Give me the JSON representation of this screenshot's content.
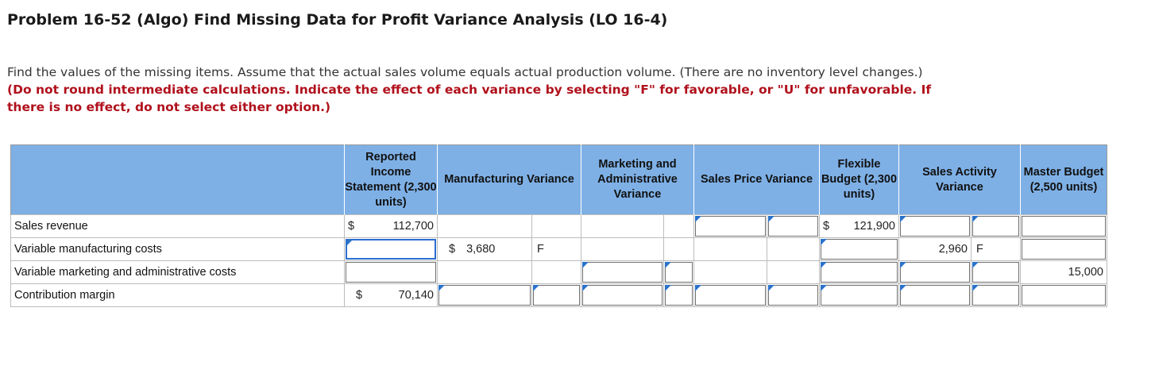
{
  "title": "Problem 16-52 (Algo) Find Missing Data for Profit Variance Analysis (LO 16-4)",
  "instructions": {
    "normal": "Find the values of the missing items. Assume that the actual sales volume equals actual production volume. (There are no inventory level changes.) ",
    "bold_red": "(Do not round intermediate calculations. Indicate the effect of each variance by selecting \"F\" for favorable, or \"U\" for unfavorable. If there is no effect, do not select either option.)"
  },
  "table": {
    "headers": {
      "reported": "Reported Income Statement (2,300 units)",
      "manufacturing": "Manufacturing Variance",
      "marketing": "Marketing and Administrative Variance",
      "sales_price": "Sales Price Variance",
      "flexible": "Flexible Budget (2,300 units)",
      "sales_activity": "Sales Activity Variance",
      "master": "Master Budget (2,500 units)"
    },
    "rows": {
      "sales_revenue": {
        "label": "Sales revenue",
        "reported_dollar": "$",
        "reported_amount": "112,700",
        "flexible_dollar": "$",
        "flexible_amount": "121,900"
      },
      "var_mfg": {
        "label": "Variable manufacturing costs",
        "mfg_dollar": "$",
        "mfg_amount": "3,680",
        "mfg_effect": "F",
        "activity_amount": "2,960",
        "activity_effect": "F"
      },
      "var_mkt": {
        "label": "Variable marketing and administrative costs",
        "master_amount": "15,000"
      },
      "contribution": {
        "label": "Contribution margin",
        "reported_dollar": "$",
        "reported_amount": "70,140"
      }
    }
  }
}
